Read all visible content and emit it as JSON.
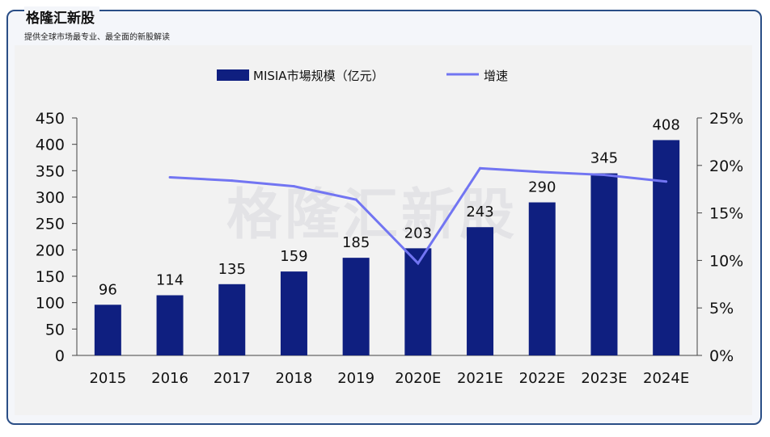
{
  "header": {
    "title": "格隆汇新股",
    "subtitle": "提供全球市场最专业、最全面的新股解读"
  },
  "watermark": "格隆汇新股",
  "colors": {
    "bar": "#0f1f80",
    "line": "#7275f2",
    "frame": "#2a4e86"
  },
  "chart_data": {
    "type": "bar",
    "categories": [
      "2015",
      "2016",
      "2017",
      "2018",
      "2019",
      "2020E",
      "2021E",
      "2022E",
      "2023E",
      "2024E"
    ],
    "series": [
      {
        "name": "MISIA市場规模（亿元）",
        "type": "bar",
        "axis": "left",
        "values": [
          96,
          114,
          135,
          159,
          185,
          203,
          243,
          290,
          345,
          408
        ],
        "labels": [
          "96",
          "114",
          "135",
          "159",
          "185",
          "203",
          "243",
          "290",
          "345",
          "408"
        ]
      },
      {
        "name": "增速",
        "type": "line",
        "axis": "right",
        "values": [
          null,
          18.75,
          18.4,
          17.8,
          16.4,
          9.7,
          19.7,
          19.3,
          19.0,
          18.3
        ]
      }
    ],
    "left_axis": {
      "ylim": [
        0,
        450
      ],
      "ticks": [
        "0",
        "50",
        "100",
        "150",
        "200",
        "250",
        "300",
        "350",
        "400",
        "450"
      ]
    },
    "right_axis": {
      "ylim": [
        0,
        25
      ],
      "ticks": [
        "0%",
        "5%",
        "10%",
        "15%",
        "20%",
        "25%"
      ]
    },
    "legend": [
      "MISIA市場规模（亿元）",
      "增速"
    ],
    "legend_position": "top"
  }
}
